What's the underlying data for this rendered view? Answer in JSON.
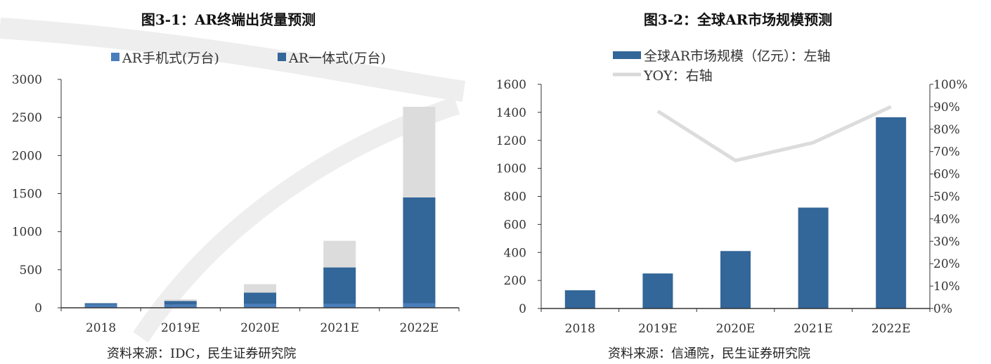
{
  "chart_data": [
    {
      "type": "bar",
      "stacked": true,
      "title": "图3-1：AR终端出货量预测",
      "categories": [
        "2018",
        "2019E",
        "2020E",
        "2021E",
        "2022E"
      ],
      "series": [
        {
          "name": "AR手机式(万台)",
          "color": "#4a7ebb",
          "values": [
            40,
            40,
            50,
            50,
            60
          ]
        },
        {
          "name": "AR一体式(万台)",
          "color": "#336699",
          "values": [
            20,
            50,
            150,
            480,
            1390
          ]
        },
        {
          "name": "",
          "color": "#dcdcdc",
          "values": [
            0,
            20,
            110,
            350,
            1190
          ]
        }
      ],
      "y_ticks": [
        "0",
        "500",
        "1000",
        "1500",
        "2000",
        "2500",
        "3000"
      ],
      "ylim": [
        0,
        3000
      ],
      "legend_position": "top",
      "source": "资料来源：IDC，民生证券研究院"
    },
    {
      "type": "bar+line",
      "title": "图3-2：全球AR市场规模预测",
      "categories": [
        "2018",
        "2019E",
        "2020E",
        "2021E",
        "2022E"
      ],
      "bars": {
        "name": "全球AR市场规模（亿元）：左轴",
        "color": "#336699",
        "values": [
          130,
          250,
          410,
          720,
          1365
        ]
      },
      "line": {
        "name": "YOY：右轴",
        "color": "#d9d9d9",
        "values": [
          null,
          88,
          66,
          74,
          90
        ]
      },
      "y_left_ticks": [
        "0",
        "200",
        "400",
        "600",
        "800",
        "1000",
        "1200",
        "1400",
        "1600"
      ],
      "y_left_lim": [
        0,
        1600
      ],
      "y_right_ticks": [
        "0%",
        "10%",
        "20%",
        "30%",
        "40%",
        "50%",
        "60%",
        "70%",
        "80%",
        "90%",
        "100%"
      ],
      "y_right_lim": [
        0,
        100
      ],
      "legend_position": "top",
      "source": "资料来源：信通院，民生证券研究院"
    }
  ]
}
